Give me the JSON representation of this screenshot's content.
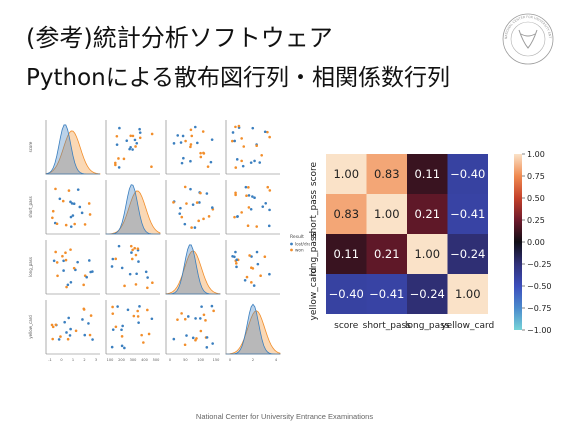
{
  "slide": {
    "title_line1": "(参考)統計分析ソフトウェア",
    "title_line2": "Pythonによる散布図行列・相関係数行列",
    "footer": "National Center for University Entrance Examinations",
    "logo_text": "NATIONAL CENTER FOR UNIVERSITY ENTRANCE EXAMINATIONS"
  },
  "pairplot": {
    "variables": [
      "score",
      "short_pass",
      "long_pass",
      "yellow_card"
    ],
    "legend_title": "Result",
    "legend": [
      {
        "label": "lost/drawn",
        "color": "#3b7fbf"
      },
      {
        "label": "won",
        "color": "#f28e2b"
      }
    ],
    "x_ticks": [
      [
        "-1",
        "0",
        "1",
        "2",
        "3"
      ],
      [
        "100",
        "200",
        "300",
        "400",
        "500"
      ],
      [
        "0",
        "50",
        "100",
        "150"
      ],
      [
        "0",
        "2",
        "4"
      ]
    ]
  },
  "chart_data": {
    "type": "heatmap",
    "rows": [
      "score",
      "short_pass",
      "long_pass",
      "yellow_card"
    ],
    "cols": [
      "score",
      "short_pass",
      "long_pass",
      "yellow_card"
    ],
    "values": [
      [
        1.0,
        0.83,
        0.11,
        -0.4
      ],
      [
        0.83,
        1.0,
        0.21,
        -0.41
      ],
      [
        0.11,
        0.21,
        1.0,
        -0.24
      ],
      [
        -0.4,
        -0.41,
        -0.24,
        1.0
      ]
    ],
    "colorbar_ticks": [
      "1.00",
      "0.75",
      "0.50",
      "0.25",
      "0.00",
      "−0.25",
      "−0.50",
      "−0.75",
      "−1.00"
    ],
    "vmin": -1,
    "vmax": 1,
    "colormap": "icefire"
  }
}
